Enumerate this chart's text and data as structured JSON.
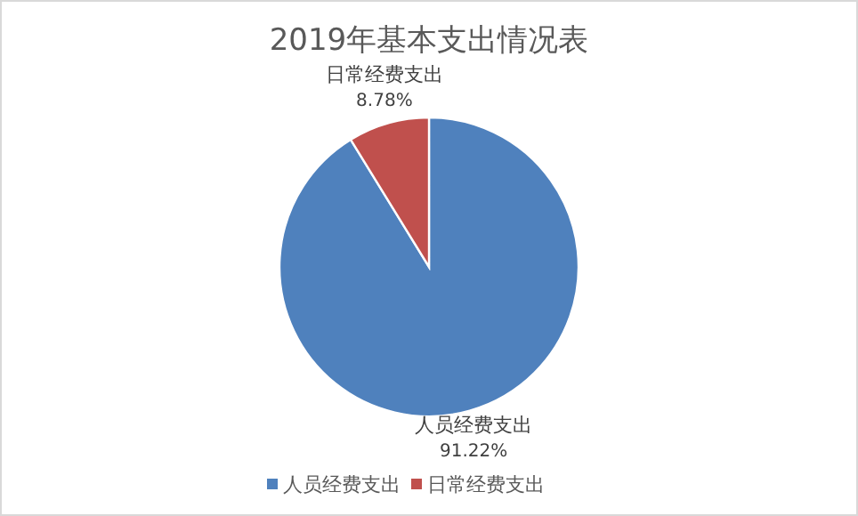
{
  "chart_data": {
    "type": "pie",
    "title": "2019年基本支出情况表",
    "categories": [
      "人员经费支出",
      "日常经费支出"
    ],
    "values": [
      91.22,
      8.78
    ],
    "colors": [
      "#4f81bd",
      "#c0504d"
    ],
    "value_labels": [
      "91.22%",
      "8.78%"
    ],
    "legend": "bottom"
  }
}
